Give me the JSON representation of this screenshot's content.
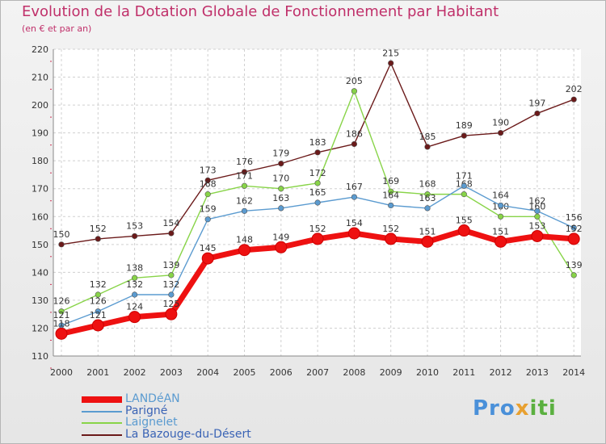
{
  "chart_data": {
    "type": "line",
    "title": "Evolution de la Dotation Globale de Fonctionnement par Habitant",
    "subtitle": "(en € et par an)",
    "xlabel": "",
    "ylabel": "",
    "ylim": [
      110,
      220
    ],
    "yticks": [
      110,
      120,
      130,
      140,
      150,
      160,
      170,
      180,
      190,
      200,
      210,
      220
    ],
    "x": [
      "2000",
      "2001",
      "2002",
      "2003",
      "2004",
      "2005",
      "2006",
      "2007",
      "2008",
      "2009",
      "2010",
      "2011",
      "2012",
      "2013",
      "2014"
    ],
    "grid": true,
    "legend_position": "bottom-left",
    "series": [
      {
        "name": "La Bazouge-du-Désert",
        "color": "#6b1a1a",
        "values": [
          150,
          152,
          153,
          154,
          173,
          176,
          179,
          183,
          186,
          215,
          185,
          189,
          190,
          197,
          202
        ]
      },
      {
        "name": "Laignelet",
        "color": "#88d448",
        "values": [
          126,
          132,
          138,
          139,
          168,
          171,
          170,
          172,
          205,
          169,
          168,
          168,
          160,
          160,
          139
        ]
      },
      {
        "name": "Parigné",
        "color": "#5b9bd0",
        "values": [
          121,
          126,
          132,
          132,
          159,
          162,
          163,
          165,
          167,
          164,
          163,
          171,
          164,
          162,
          156
        ]
      },
      {
        "name": "LANDéAN",
        "color": "#ee1111",
        "values": [
          118,
          121,
          124,
          125,
          145,
          148,
          149,
          152,
          154,
          152,
          151,
          155,
          151,
          153,
          152
        ]
      }
    ]
  },
  "legend": {
    "items": [
      "LANDéAN",
      "Parigné",
      "Laignelet",
      "La Bazouge-du-Désert"
    ],
    "colors": [
      "#ee1111",
      "#5b9bd0",
      "#88d448",
      "#6b1a1a"
    ]
  },
  "logo": {
    "part1": "Pro",
    "part2": "x",
    "part3": "iti"
  }
}
